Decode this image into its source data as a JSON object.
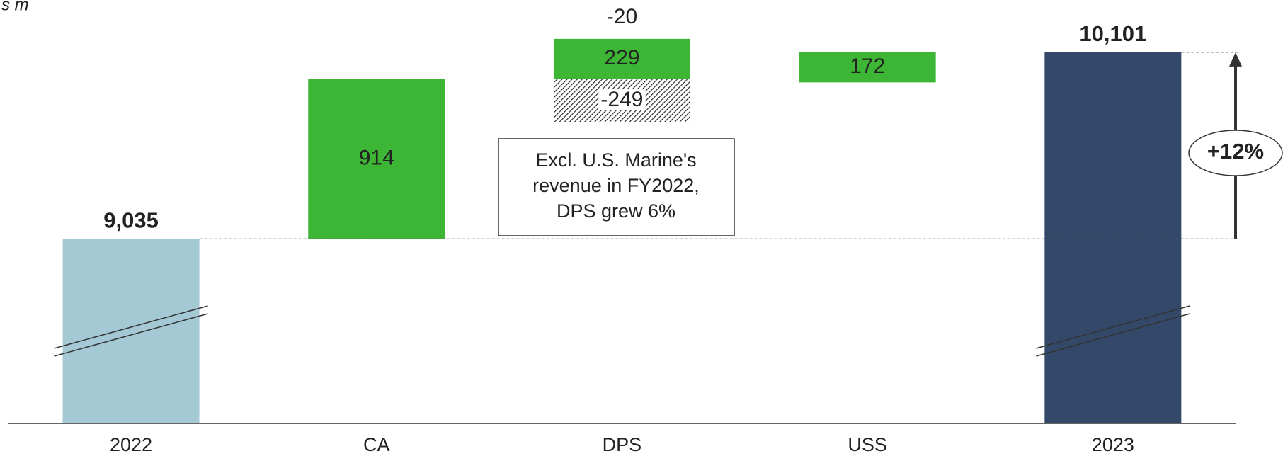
{
  "chart_data": {
    "type": "waterfall",
    "unit": "s m",
    "categories": [
      "2022",
      "CA",
      "DPS",
      "USS",
      "2023"
    ],
    "kinds": [
      "total",
      "delta",
      "delta",
      "delta",
      "total"
    ],
    "values": [
      9035,
      914,
      -20,
      172,
      10101
    ],
    "value_labels": [
      "9,035",
      "914",
      "-20",
      "172",
      "10,101"
    ],
    "segments": {
      "2": [
        229,
        -249
      ]
    },
    "colors": {
      "first": "#a5c8d5",
      "delta": "#3db535",
      "last": "#34496a"
    },
    "ylim": [
      7980,
      10400
    ],
    "axis_break": true,
    "annotation": [
      "Excl. U.S. Marine's",
      "revenue in FY2022,",
      "DPS grew 6%"
    ],
    "growth_label": "+12%"
  }
}
